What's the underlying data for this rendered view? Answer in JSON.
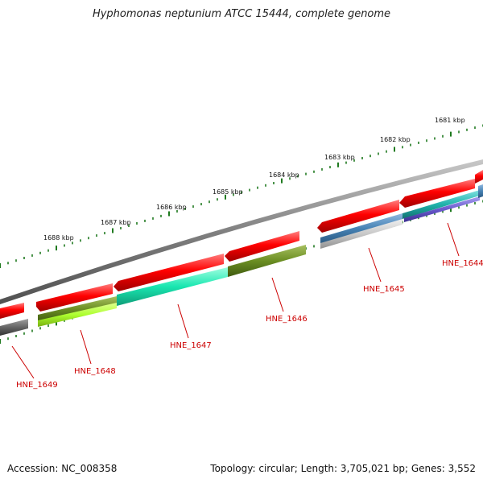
{
  "title": "Hyphomonas neptunium ATCC 15444, complete genome",
  "accession": "Accession: NC_008358",
  "summary": "Topology: circular; Length: 3,705,021 bp; Genes: 3,552",
  "colors": {
    "backbone": "#7a7a7a",
    "tick": "#1f7a1f",
    "gene_red": "#e60000",
    "label": "#cc0000"
  },
  "scale_labels": [
    "1681 kbp",
    "1682 kbp",
    "1683 kbp",
    "1684 kbp",
    "1685 kbp",
    "1686 kbp",
    "1687 kbp",
    "1688 kbp"
  ],
  "gene_labels": [
    "HNE_1644",
    "HNE_1645",
    "HNE_1646",
    "HNE_1647",
    "HNE_1648",
    "HNE_1649"
  ],
  "feature_colors": {
    "red": "#e60000",
    "olive": "#6b8e23",
    "lime": "#b5f23a",
    "turquoise": "#19e6b0",
    "steelblue": "#4682b4",
    "lightsteel": "#b0c4de",
    "teal": "#20b2aa",
    "slateblue": "#6a5acd",
    "gray": "#555555"
  }
}
